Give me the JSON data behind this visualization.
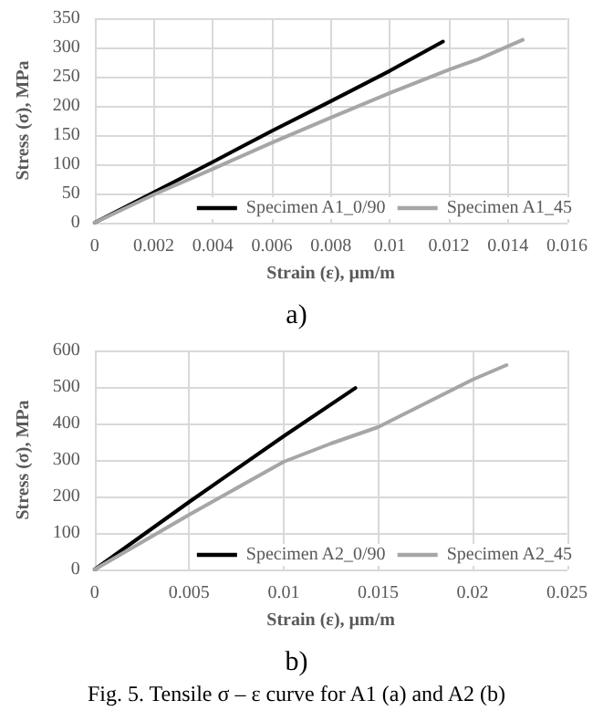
{
  "chart_data": [
    {
      "type": "line",
      "xlabel": "Strain (ε), µm/m",
      "ylabel": "Stress (σ), MPa",
      "annotations": [
        "a)"
      ],
      "xlim": [
        0,
        0.016
      ],
      "xticks": [
        0,
        0.002,
        0.004,
        0.006,
        0.008,
        0.01,
        0.012,
        0.014,
        0.016
      ],
      "ylim": [
        0,
        350
      ],
      "yticks": [
        0,
        50,
        100,
        150,
        200,
        250,
        300,
        350
      ],
      "grid": true,
      "legend": "bottom right",
      "marker": "none",
      "line_style": "solid",
      "series": [
        {
          "name": "Specimen A1_0/90",
          "color": "#000000",
          "x": [
            0,
            0.002,
            0.004,
            0.006,
            0.008,
            0.01,
            0.0118
          ],
          "values": [
            0,
            52,
            104,
            157,
            208,
            260,
            310
          ]
        },
        {
          "name": "Specimen A1_45",
          "color": "#a6a6a6",
          "x": [
            0,
            0.002,
            0.004,
            0.006,
            0.008,
            0.01,
            0.012,
            0.013,
            0.0145
          ],
          "values": [
            0,
            48,
            92,
            137,
            180,
            222,
            262,
            280,
            313
          ]
        }
      ]
    },
    {
      "type": "line",
      "xlabel": "Strain (ε), µm/m",
      "ylabel": "Stress (σ), MPa",
      "annotations": [
        "b)",
        "Fig. 5. Tensile σ – ε curve for A1 (a) and A2 (b)"
      ],
      "xlim": [
        0,
        0.025
      ],
      "xticks": [
        0,
        0.005,
        0.01,
        0.015,
        0.02,
        0.025
      ],
      "ylim": [
        0,
        600
      ],
      "yticks": [
        0,
        100,
        200,
        300,
        400,
        500,
        600
      ],
      "grid": true,
      "legend": "bottom right",
      "marker": "none",
      "line_style": "solid",
      "series": [
        {
          "name": "Specimen A2_0/90",
          "color": "#000000",
          "x": [
            0,
            0.005,
            0.01,
            0.0138
          ],
          "values": [
            0,
            185,
            365,
            497
          ]
        },
        {
          "name": "Specimen A2_45",
          "color": "#a6a6a6",
          "x": [
            0,
            0.005,
            0.01,
            0.0125,
            0.015,
            0.0175,
            0.02,
            0.0218
          ],
          "values": [
            0,
            150,
            295,
            345,
            390,
            455,
            520,
            560
          ]
        }
      ]
    }
  ]
}
